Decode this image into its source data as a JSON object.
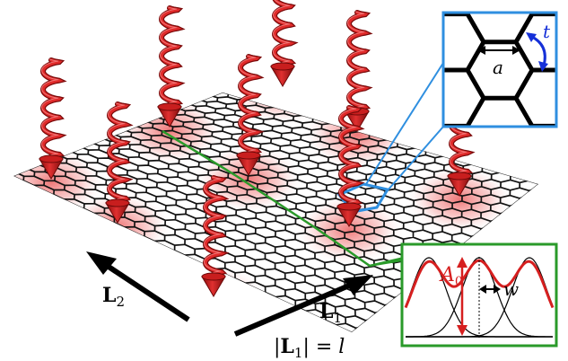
{
  "labels": {
    "L2": "L",
    "L2_sub": "2",
    "L1": "L",
    "L1_sub": "1",
    "L1_norm_open": "|",
    "L1_norm_L": "L",
    "L1_norm_sub": "1",
    "L1_norm_close": "| = ",
    "L1_norm_value": "l",
    "lattice_const": "a",
    "hopping": "t",
    "amplitude": "A",
    "amplitude_sub": "0",
    "width": "w"
  },
  "colors": {
    "laser": "#d61f1f",
    "laser_dark": "#8a0b0b",
    "hex_inset_border": "#2f8fe0",
    "profile_inset_border": "#2a9a2a",
    "cut_line": "#2a9a2a",
    "hopping_arrow": "#1530d8",
    "profile_curve": "#d61f1f",
    "glow": "#e84a4a"
  }
}
